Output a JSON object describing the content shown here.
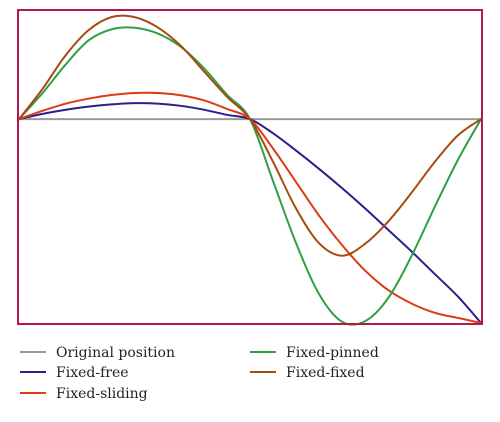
{
  "chart_data": {
    "type": "line",
    "title": "",
    "xlabel": "",
    "ylabel": "",
    "xlim": [
      0,
      1
    ],
    "ylim": [
      -1.0,
      0.53
    ],
    "grid": false,
    "legend_position": "bottom",
    "frame_color": "#b5164b",
    "x": [
      0,
      0.05,
      0.1,
      0.15,
      0.2,
      0.25,
      0.3,
      0.35,
      0.4,
      0.45,
      0.5,
      0.55,
      0.6,
      0.65,
      0.7,
      0.75,
      0.8,
      0.85,
      0.9,
      0.95,
      1.0
    ],
    "series": [
      {
        "name": "Original position",
        "color": "#999999",
        "values": [
          0,
          0,
          0,
          0,
          0,
          0,
          0,
          0,
          0,
          0,
          0,
          0,
          0,
          0,
          0,
          0,
          0,
          0,
          0,
          0,
          0
        ]
      },
      {
        "name": "Fixed-free",
        "color": "#2a1f8f",
        "values": [
          0,
          0.025,
          0.045,
          0.061,
          0.072,
          0.078,
          0.076,
          0.065,
          0.046,
          0.021,
          0,
          -0.07,
          -0.155,
          -0.245,
          -0.34,
          -0.44,
          -0.545,
          -0.65,
          -0.76,
          -0.87,
          -1.0
        ]
      },
      {
        "name": "Fixed-sliding",
        "color": "#e03a12",
        "values": [
          0,
          0.04,
          0.075,
          0.1,
          0.118,
          0.128,
          0.128,
          0.117,
          0.092,
          0.05,
          0,
          -0.145,
          -0.31,
          -0.475,
          -0.62,
          -0.745,
          -0.84,
          -0.905,
          -0.95,
          -0.975,
          -1.0
        ]
      },
      {
        "name": "Fixed-pinned",
        "color": "#2ea043",
        "values": [
          0,
          0.125,
          0.265,
          0.385,
          0.44,
          0.448,
          0.42,
          0.355,
          0.25,
          0.12,
          0,
          -0.305,
          -0.61,
          -0.86,
          -0.995,
          -0.99,
          -0.875,
          -0.67,
          -0.43,
          -0.2,
          0
        ]
      },
      {
        "name": "Fixed-fixed",
        "color": "#a84a10",
        "values": [
          0,
          0.145,
          0.31,
          0.435,
          0.5,
          0.5,
          0.45,
          0.36,
          0.235,
          0.11,
          0,
          -0.21,
          -0.44,
          -0.61,
          -0.67,
          -0.61,
          -0.5,
          -0.36,
          -0.21,
          -0.08,
          0
        ]
      }
    ]
  }
}
